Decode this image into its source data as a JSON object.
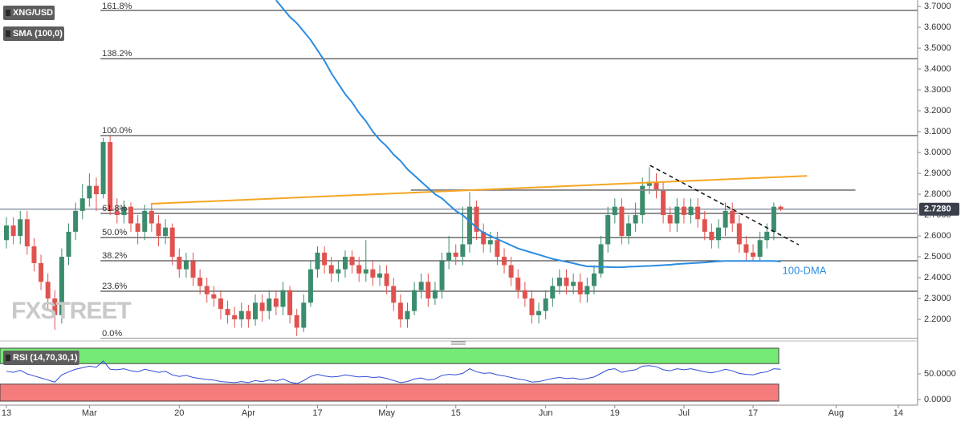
{
  "chart_data": {
    "type": "candlestick",
    "symbol": "XNG/USD",
    "indicator_label": "SMA (100,0)",
    "watermark": "FXSTREET",
    "xlim": [
      -0.93,
      131.8
    ],
    "ylim": [
      2.108,
      3.731
    ],
    "yticks": [
      {
        "value": 2.2,
        "label": "2.2000"
      },
      {
        "value": 2.3,
        "label": "2.3000"
      },
      {
        "value": 2.4,
        "label": "2.4000"
      },
      {
        "value": 2.5,
        "label": "2.5000"
      },
      {
        "value": 2.6,
        "label": "2.6000"
      },
      {
        "value": 2.7,
        "label": "2.7000"
      },
      {
        "value": 2.8,
        "label": "2.8000"
      },
      {
        "value": 2.9,
        "label": "2.9000"
      },
      {
        "value": 3.0,
        "label": "3.0000"
      },
      {
        "value": 3.1,
        "label": "3.1000"
      },
      {
        "value": 3.2,
        "label": "3.2000"
      },
      {
        "value": 3.3,
        "label": "3.3000"
      },
      {
        "value": 3.4,
        "label": "3.4000"
      },
      {
        "value": 3.5,
        "label": "3.5000"
      },
      {
        "value": 3.6,
        "label": "3.6000"
      },
      {
        "value": 3.7,
        "label": "3.7000"
      }
    ],
    "xticks": [
      {
        "value": 0,
        "label": "13"
      },
      {
        "value": 12,
        "label": "Mar"
      },
      {
        "value": 25,
        "label": "20"
      },
      {
        "value": 35,
        "label": "Apr"
      },
      {
        "value": 45,
        "label": "17"
      },
      {
        "value": 55,
        "label": "May"
      },
      {
        "value": 65,
        "label": "15"
      },
      {
        "value": 78,
        "label": "Jun"
      },
      {
        "value": 88,
        "label": "19"
      },
      {
        "value": 98,
        "label": "Jul"
      },
      {
        "value": 108,
        "label": "17"
      },
      {
        "value": 120,
        "label": "Aug"
      },
      {
        "value": 129,
        "label": "14"
      }
    ],
    "colors": {
      "up": "#3a8c6c",
      "down": "#e0524f"
    },
    "open": [
      2.58,
      2.65,
      2.6,
      2.68,
      2.55,
      2.47,
      2.38,
      2.3,
      2.22,
      2.5,
      2.62,
      2.72,
      2.78,
      2.84,
      2.8,
      3.05,
      2.72,
      2.7,
      2.74,
      2.66,
      2.62,
      2.72,
      2.66,
      2.6,
      2.64,
      2.5,
      2.44,
      2.48,
      2.4,
      2.36,
      2.32,
      2.3,
      2.25,
      2.22,
      2.2,
      2.24,
      2.2,
      2.28,
      2.24,
      2.3,
      2.26,
      2.34,
      2.22,
      2.16,
      2.28,
      2.44,
      2.52,
      2.46,
      2.42,
      2.44,
      2.5,
      2.46,
      2.42,
      2.44,
      2.4,
      2.42,
      2.36,
      2.28,
      2.2,
      2.24,
      2.34,
      2.38,
      2.3,
      2.34,
      2.48,
      2.52,
      2.5,
      2.56,
      2.74,
      2.62,
      2.56,
      2.58,
      2.5,
      2.46,
      2.4,
      2.34,
      2.3,
      2.22,
      2.24,
      2.3,
      2.36,
      2.4,
      2.36,
      2.38,
      2.32,
      2.36,
      2.42,
      2.56,
      2.7,
      2.74,
      2.6,
      2.66,
      2.7,
      2.84,
      2.86,
      2.82,
      2.7,
      2.66,
      2.74,
      2.7,
      2.74,
      2.68,
      2.62,
      2.58,
      2.64,
      2.72,
      2.66,
      2.56,
      2.52,
      2.5,
      2.58,
      2.62,
      2.74
    ],
    "high": [
      2.69,
      2.69,
      2.72,
      2.72,
      2.59,
      2.51,
      2.42,
      2.34,
      2.54,
      2.66,
      2.76,
      2.85,
      2.9,
      2.88,
      3.07,
      3.08,
      2.78,
      2.77,
      2.76,
      2.7,
      2.75,
      2.75,
      2.7,
      2.68,
      2.66,
      2.54,
      2.52,
      2.52,
      2.44,
      2.4,
      2.36,
      2.34,
      2.29,
      2.26,
      2.28,
      2.27,
      2.32,
      2.32,
      2.34,
      2.34,
      2.38,
      2.36,
      2.25,
      2.32,
      2.48,
      2.55,
      2.55,
      2.5,
      2.48,
      2.53,
      2.53,
      2.5,
      2.58,
      2.48,
      2.46,
      2.46,
      2.4,
      2.32,
      2.28,
      2.38,
      2.42,
      2.42,
      2.38,
      2.52,
      2.6,
      2.56,
      2.74,
      2.81,
      2.77,
      2.66,
      2.62,
      2.62,
      2.54,
      2.5,
      2.44,
      2.38,
      2.34,
      2.28,
      2.34,
      2.4,
      2.44,
      2.44,
      2.42,
      2.42,
      2.4,
      2.46,
      2.6,
      2.74,
      2.78,
      2.78,
      2.7,
      2.76,
      2.88,
      2.93,
      2.9,
      2.86,
      2.74,
      2.78,
      2.78,
      2.78,
      2.78,
      2.72,
      2.66,
      2.68,
      2.76,
      2.76,
      2.7,
      2.6,
      2.56,
      2.62,
      2.66,
      2.76,
      2.745
    ],
    "low": [
      2.54,
      2.56,
      2.56,
      2.51,
      2.43,
      2.34,
      2.24,
      2.15,
      2.18,
      2.46,
      2.58,
      2.68,
      2.74,
      2.72,
      2.78,
      2.7,
      2.66,
      2.66,
      2.62,
      2.56,
      2.58,
      2.62,
      2.55,
      2.56,
      2.46,
      2.4,
      2.4,
      2.36,
      2.32,
      2.28,
      2.26,
      2.2,
      2.18,
      2.16,
      2.16,
      2.16,
      2.17,
      2.19,
      2.2,
      2.22,
      2.22,
      2.18,
      2.12,
      2.14,
      2.26,
      2.4,
      2.42,
      2.38,
      2.38,
      2.4,
      2.42,
      2.38,
      2.38,
      2.36,
      2.36,
      2.32,
      2.24,
      2.16,
      2.16,
      2.22,
      2.3,
      2.26,
      2.27,
      2.3,
      2.44,
      2.46,
      2.46,
      2.52,
      2.58,
      2.52,
      2.52,
      2.46,
      2.42,
      2.36,
      2.3,
      2.26,
      2.18,
      2.18,
      2.2,
      2.26,
      2.32,
      2.32,
      2.32,
      2.28,
      2.28,
      2.32,
      2.4,
      2.52,
      2.66,
      2.56,
      2.56,
      2.62,
      2.66,
      2.8,
      2.78,
      2.66,
      2.62,
      2.62,
      2.66,
      2.66,
      2.64,
      2.58,
      2.54,
      2.54,
      2.6,
      2.62,
      2.52,
      2.48,
      2.48,
      2.48,
      2.54,
      2.58,
      2.72
    ],
    "close": [
      2.65,
      2.6,
      2.68,
      2.55,
      2.47,
      2.38,
      2.3,
      2.22,
      2.5,
      2.62,
      2.72,
      2.78,
      2.84,
      2.8,
      3.05,
      2.72,
      2.7,
      2.74,
      2.66,
      2.62,
      2.72,
      2.66,
      2.6,
      2.64,
      2.5,
      2.44,
      2.48,
      2.4,
      2.36,
      2.32,
      2.3,
      2.25,
      2.22,
      2.2,
      2.24,
      2.2,
      2.28,
      2.24,
      2.3,
      2.26,
      2.34,
      2.22,
      2.16,
      2.28,
      2.44,
      2.52,
      2.46,
      2.42,
      2.44,
      2.5,
      2.46,
      2.42,
      2.44,
      2.4,
      2.42,
      2.36,
      2.28,
      2.2,
      2.24,
      2.34,
      2.38,
      2.3,
      2.34,
      2.48,
      2.52,
      2.5,
      2.56,
      2.74,
      2.62,
      2.56,
      2.58,
      2.5,
      2.46,
      2.4,
      2.34,
      2.3,
      2.22,
      2.24,
      2.3,
      2.36,
      2.4,
      2.36,
      2.38,
      2.32,
      2.36,
      2.42,
      2.56,
      2.7,
      2.74,
      2.6,
      2.66,
      2.7,
      2.84,
      2.86,
      2.82,
      2.7,
      2.66,
      2.74,
      2.7,
      2.74,
      2.68,
      2.62,
      2.58,
      2.64,
      2.72,
      2.66,
      2.56,
      2.52,
      2.5,
      2.58,
      2.62,
      2.74,
      2.728
    ],
    "sma": {
      "color": "#2b8be0",
      "values": [
        null,
        null,
        null,
        null,
        null,
        null,
        null,
        null,
        null,
        null,
        null,
        null,
        null,
        null,
        null,
        null,
        null,
        null,
        null,
        null,
        null,
        null,
        null,
        null,
        null,
        null,
        null,
        null,
        null,
        null,
        null,
        null,
        null,
        null,
        null,
        null,
        null,
        null,
        null,
        3.73,
        3.69,
        3.65,
        3.62,
        3.58,
        3.54,
        3.49,
        3.44,
        3.38,
        3.33,
        3.28,
        3.24,
        3.19,
        3.15,
        3.1,
        3.06,
        3.03,
        2.99,
        2.96,
        2.92,
        2.89,
        2.86,
        2.83,
        2.8,
        2.78,
        2.75,
        2.72,
        2.7,
        2.67,
        2.64,
        2.615,
        2.6,
        2.585,
        2.57,
        2.555,
        2.54,
        2.53,
        2.52,
        2.51,
        2.5,
        2.49,
        2.483,
        2.476,
        2.469,
        2.461,
        2.454,
        2.453,
        2.452,
        2.451,
        2.45,
        2.45,
        2.452,
        2.453,
        2.455,
        2.456,
        2.458,
        2.46,
        2.462,
        2.465,
        2.467,
        2.469,
        2.471,
        2.473,
        2.476,
        2.478,
        2.48,
        2.48,
        2.48,
        2.48,
        2.48,
        2.48,
        2.48,
        2.48,
        2.477
      ]
    },
    "fib_start": 13.6,
    "fib_levels": [
      {
        "label": "161.8%",
        "value": 3.681
      },
      {
        "label": "138.2%",
        "value": 3.45
      },
      {
        "label": "100.0%",
        "value": 3.081
      },
      {
        "label": "61.8%",
        "value": 2.708
      },
      {
        "label": "50.0%",
        "value": 2.592
      },
      {
        "label": "38.2%",
        "value": 2.481
      },
      {
        "label": "23.6%",
        "value": 2.335
      },
      {
        "label": "0.0%",
        "value": 2.108
      }
    ],
    "lines": [
      {
        "color": "#8a8a8a",
        "dash": false,
        "x": [
          58.5,
          122.8
        ],
        "y": [
          2.82,
          2.82
        ]
      },
      {
        "color": "#f5a623",
        "dash": false,
        "x": [
          20.9,
          115.8
        ],
        "y": [
          2.754,
          2.888
        ]
      },
      {
        "color": "#111111",
        "dash": true,
        "x": [
          93.1,
          114.6
        ],
        "y": [
          2.938,
          2.558
        ]
      }
    ],
    "annotation": {
      "text": "100-DMA",
      "color": "#2b8be0"
    },
    "last_price": {
      "value": 2.728,
      "label": "2.7280"
    },
    "rsi": {
      "label": "RSI (14,70,30,1)",
      "color": "#2f4bd8",
      "ylim": [
        0,
        101.6
      ],
      "overbought": 70,
      "oversold": 30,
      "top": 100,
      "yticks": [
        {
          "value": 50,
          "label": "50.0000"
        },
        {
          "value": 0,
          "label": "0.0000"
        }
      ],
      "values": [
        55,
        53,
        57,
        50,
        46,
        42,
        38,
        34,
        48,
        54,
        59,
        62,
        65,
        63,
        75,
        59,
        58,
        60,
        56,
        54,
        59,
        56,
        53,
        55,
        48,
        45,
        47,
        43,
        41,
        39,
        38,
        35,
        34,
        33,
        35,
        33,
        37,
        35,
        38,
        36,
        40,
        34,
        31,
        37,
        45,
        49,
        46,
        44,
        45,
        48,
        46,
        44,
        45,
        43,
        44,
        41,
        37,
        33,
        35,
        40,
        42,
        38,
        40,
        47,
        49,
        48,
        51,
        60,
        54,
        51,
        52,
        48,
        46,
        43,
        40,
        38,
        34,
        35,
        38,
        41,
        43,
        41,
        42,
        39,
        41,
        44,
        51,
        58,
        60,
        53,
        56,
        58,
        65,
        66,
        64,
        58,
        56,
        60,
        58,
        60,
        57,
        54,
        52,
        55,
        59,
        56,
        51,
        49,
        48,
        52,
        54,
        60,
        59
      ]
    }
  }
}
